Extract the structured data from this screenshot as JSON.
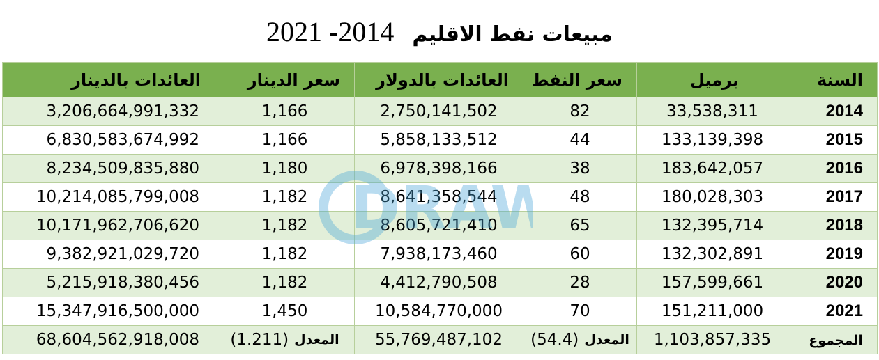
{
  "title": {
    "text": "مبيعات نفط الاقليم",
    "years": "2021 -2014"
  },
  "headers": {
    "year": "السنة",
    "barrels": "برميل",
    "oil_price": "سعر النفط",
    "revenue_usd": "العائدات بالدولار",
    "dinar_rate": "سعر الدينار",
    "revenue_iqd": "العائدات بالدينار"
  },
  "rows": [
    {
      "year": "2014",
      "barrels": "33,538,311",
      "oil_price": "82",
      "revenue_usd": "2,750,141,502",
      "dinar_rate": "1,166",
      "revenue_iqd": "3,206,664,991,332"
    },
    {
      "year": "2015",
      "barrels": "133,139,398",
      "oil_price": "44",
      "revenue_usd": "5,858,133,512",
      "dinar_rate": "1,166",
      "revenue_iqd": "6,830,583,674,992"
    },
    {
      "year": "2016",
      "barrels": "183,642,057",
      "oil_price": "38",
      "revenue_usd": "6,978,398,166",
      "dinar_rate": "1,180",
      "revenue_iqd": "8,234,509,835,880"
    },
    {
      "year": "2017",
      "barrels": "180,028,303",
      "oil_price": "48",
      "revenue_usd": "8,641,358,544",
      "dinar_rate": "1,182",
      "revenue_iqd": "10,214,085,799,008"
    },
    {
      "year": "2018",
      "barrels": "132,395,714",
      "oil_price": "65",
      "revenue_usd": "8,605,721,410",
      "dinar_rate": "1,182",
      "revenue_iqd": "10,171,962,706,620"
    },
    {
      "year": "2019",
      "barrels": "132,302,891",
      "oil_price": "60",
      "revenue_usd": "7,938,173,460",
      "dinar_rate": "1,182",
      "revenue_iqd": "9,382,921,029,720"
    },
    {
      "year": "2020",
      "barrels": "157,599,661",
      "oil_price": "28",
      "revenue_usd": "4,412,790,508",
      "dinar_rate": "1,182",
      "revenue_iqd": "5,215,918,380,456"
    },
    {
      "year": "2021",
      "barrels": "151,211,000",
      "oil_price": "70",
      "revenue_usd": "10,584,770,000",
      "dinar_rate": "1,450",
      "revenue_iqd": "15,347,916,500,000"
    }
  ],
  "totals": {
    "label": "المجموع",
    "barrels": "1,103,857,335",
    "oil_price_label": "المعدل",
    "oil_price": "(54.4)",
    "revenue_usd": "55,769,487,102",
    "dinar_rate_label": "المعدل",
    "dinar_rate": "(1.211)",
    "revenue_iqd": "68,604,562,918,008"
  },
  "watermark": {
    "text": "DRAW",
    "color": "#4aa6d8"
  }
}
